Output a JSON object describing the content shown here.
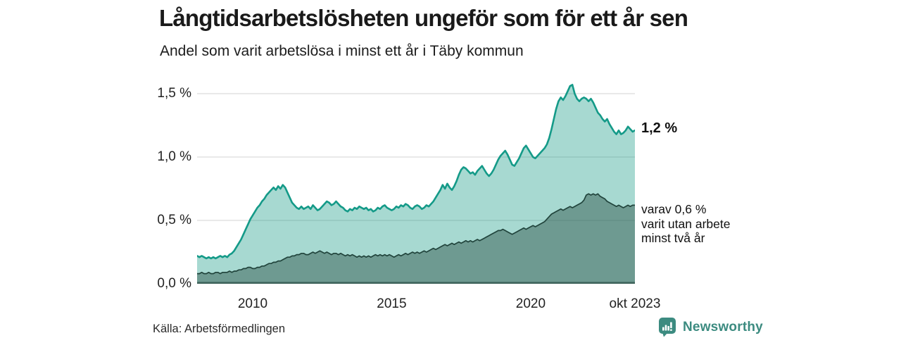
{
  "header": {
    "title": "Långtidsarbetslösheten ungeför som för ett år sen",
    "subtitle": "Andel som varit arbetslösa i minst ett år i Täby kommun"
  },
  "chart_data": {
    "type": "area",
    "unit": "%",
    "frequency": "monthly",
    "x_start": "2008-01",
    "x_end": "2023-10",
    "ylim": [
      0,
      1.62
    ],
    "grid": "horizontal",
    "y_ticks": [
      {
        "label": "0,0 %",
        "value": 0
      },
      {
        "label": "0,5 %",
        "value": 0.5
      },
      {
        "label": "1,0 %",
        "value": 1.0
      },
      {
        "label": "1,5 %",
        "value": 1.5
      }
    ],
    "x_ticks": [
      {
        "label": "2010",
        "month_index": 24
      },
      {
        "label": "2015",
        "month_index": 84
      },
      {
        "label": "2020",
        "month_index": 144
      },
      {
        "label": "okt 2023",
        "month_index": 189
      }
    ],
    "colors": {
      "grid": "#dcdcdc",
      "axis_baseline": "#3f645c",
      "total_line": "#149a88",
      "total_fill": "rgba(23,154,135,0.38)",
      "two_year_line": "#21443c",
      "two_year_fill": "rgba(31,66,58,0.42)"
    },
    "series": [
      {
        "name": "Arbetslösa minst ett år",
        "values": [
          0.22,
          0.21,
          0.22,
          0.21,
          0.2,
          0.21,
          0.2,
          0.21,
          0.2,
          0.21,
          0.22,
          0.21,
          0.22,
          0.21,
          0.23,
          0.24,
          0.26,
          0.29,
          0.32,
          0.35,
          0.39,
          0.43,
          0.47,
          0.51,
          0.54,
          0.57,
          0.6,
          0.62,
          0.65,
          0.67,
          0.7,
          0.72,
          0.74,
          0.76,
          0.74,
          0.77,
          0.75,
          0.78,
          0.76,
          0.72,
          0.68,
          0.64,
          0.62,
          0.6,
          0.59,
          0.61,
          0.59,
          0.6,
          0.61,
          0.59,
          0.62,
          0.6,
          0.58,
          0.59,
          0.61,
          0.63,
          0.65,
          0.64,
          0.62,
          0.63,
          0.65,
          0.63,
          0.61,
          0.6,
          0.58,
          0.57,
          0.59,
          0.58,
          0.6,
          0.59,
          0.61,
          0.6,
          0.59,
          0.6,
          0.58,
          0.59,
          0.57,
          0.58,
          0.6,
          0.59,
          0.61,
          0.62,
          0.6,
          0.59,
          0.58,
          0.59,
          0.61,
          0.6,
          0.62,
          0.61,
          0.63,
          0.62,
          0.6,
          0.59,
          0.61,
          0.62,
          0.61,
          0.59,
          0.6,
          0.62,
          0.61,
          0.63,
          0.65,
          0.68,
          0.71,
          0.74,
          0.78,
          0.75,
          0.79,
          0.76,
          0.74,
          0.77,
          0.81,
          0.86,
          0.9,
          0.92,
          0.91,
          0.89,
          0.87,
          0.88,
          0.86,
          0.89,
          0.91,
          0.93,
          0.9,
          0.87,
          0.85,
          0.87,
          0.9,
          0.94,
          0.98,
          1.01,
          1.03,
          1.05,
          1.02,
          0.98,
          0.94,
          0.93,
          0.96,
          0.99,
          1.03,
          1.07,
          1.09,
          1.06,
          1.03,
          1.0,
          0.99,
          1.01,
          1.03,
          1.05,
          1.07,
          1.1,
          1.15,
          1.22,
          1.3,
          1.38,
          1.44,
          1.47,
          1.45,
          1.48,
          1.52,
          1.56,
          1.57,
          1.5,
          1.46,
          1.44,
          1.46,
          1.47,
          1.46,
          1.44,
          1.46,
          1.43,
          1.39,
          1.35,
          1.33,
          1.3,
          1.28,
          1.3,
          1.26,
          1.23,
          1.2,
          1.18,
          1.21,
          1.18,
          1.19,
          1.21,
          1.24,
          1.22,
          1.2,
          1.21
        ]
      },
      {
        "name": "varav utan arbete minst två år",
        "values": [
          0.08,
          0.08,
          0.09,
          0.08,
          0.08,
          0.09,
          0.08,
          0.08,
          0.09,
          0.09,
          0.08,
          0.09,
          0.09,
          0.09,
          0.1,
          0.09,
          0.1,
          0.1,
          0.11,
          0.11,
          0.12,
          0.12,
          0.13,
          0.13,
          0.12,
          0.12,
          0.13,
          0.13,
          0.14,
          0.14,
          0.15,
          0.16,
          0.16,
          0.17,
          0.17,
          0.18,
          0.18,
          0.19,
          0.2,
          0.21,
          0.21,
          0.22,
          0.22,
          0.23,
          0.23,
          0.24,
          0.24,
          0.23,
          0.23,
          0.24,
          0.25,
          0.24,
          0.25,
          0.26,
          0.25,
          0.24,
          0.25,
          0.24,
          0.23,
          0.24,
          0.24,
          0.23,
          0.24,
          0.23,
          0.22,
          0.23,
          0.22,
          0.23,
          0.22,
          0.21,
          0.22,
          0.21,
          0.22,
          0.21,
          0.22,
          0.21,
          0.22,
          0.23,
          0.22,
          0.23,
          0.22,
          0.23,
          0.22,
          0.23,
          0.22,
          0.21,
          0.22,
          0.23,
          0.22,
          0.23,
          0.24,
          0.23,
          0.24,
          0.25,
          0.24,
          0.25,
          0.24,
          0.25,
          0.26,
          0.25,
          0.26,
          0.27,
          0.28,
          0.27,
          0.28,
          0.29,
          0.3,
          0.31,
          0.3,
          0.31,
          0.32,
          0.31,
          0.32,
          0.33,
          0.32,
          0.33,
          0.34,
          0.33,
          0.34,
          0.33,
          0.34,
          0.35,
          0.34,
          0.35,
          0.36,
          0.37,
          0.38,
          0.39,
          0.4,
          0.41,
          0.42,
          0.42,
          0.43,
          0.42,
          0.41,
          0.4,
          0.39,
          0.4,
          0.41,
          0.42,
          0.43,
          0.44,
          0.43,
          0.44,
          0.45,
          0.46,
          0.45,
          0.46,
          0.47,
          0.48,
          0.49,
          0.51,
          0.53,
          0.55,
          0.56,
          0.57,
          0.58,
          0.59,
          0.58,
          0.59,
          0.6,
          0.61,
          0.6,
          0.61,
          0.62,
          0.63,
          0.64,
          0.66,
          0.7,
          0.71,
          0.7,
          0.71,
          0.7,
          0.71,
          0.69,
          0.68,
          0.67,
          0.65,
          0.64,
          0.63,
          0.62,
          0.61,
          0.62,
          0.61,
          0.6,
          0.61,
          0.62,
          0.61,
          0.62,
          0.62
        ]
      }
    ],
    "annotations": {
      "latest_total": "1,2 %",
      "secondary": "varav 0,6 %\nvarit utan arbete\nminst två år"
    }
  },
  "footer": {
    "source": "Källa: Arbetsförmedlingen",
    "logo_text": "Newsworthy",
    "logo_color": "#3c8b80"
  }
}
